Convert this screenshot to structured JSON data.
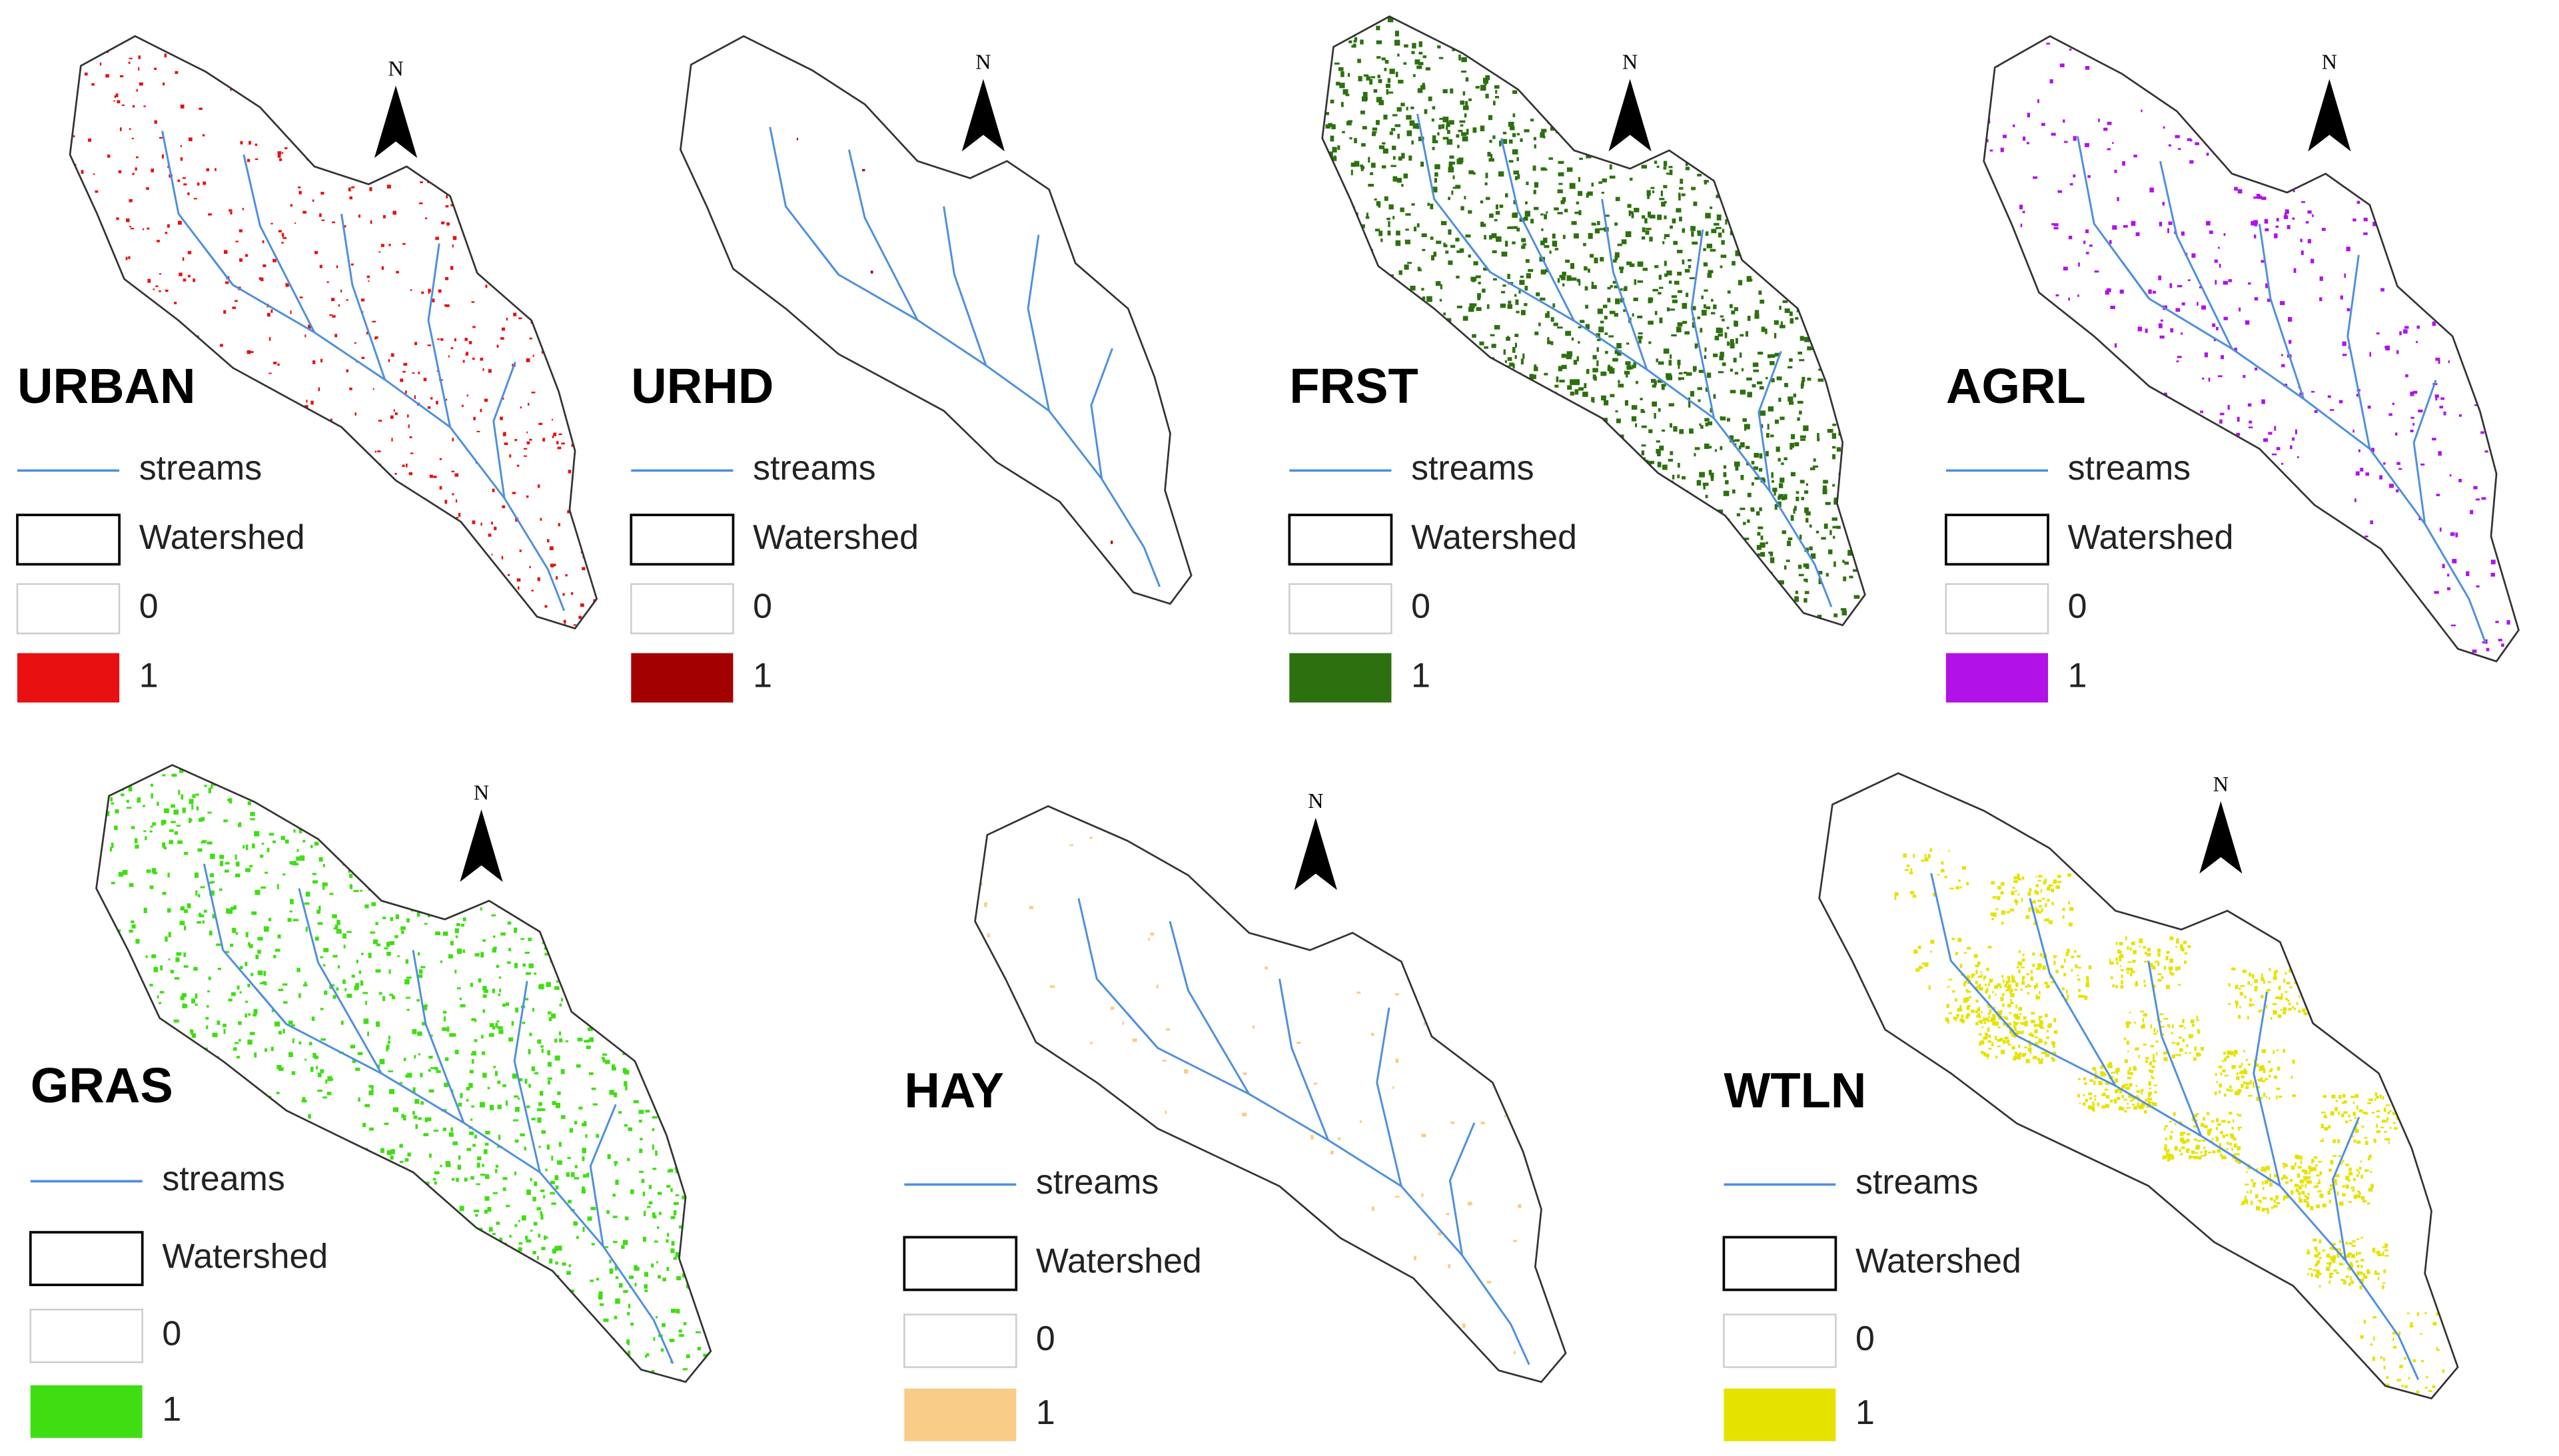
{
  "north": "N",
  "panels": [
    {
      "title": "URBAN",
      "color": "#e81010",
      "legend": [
        "streams",
        "Watershed",
        "0",
        "1"
      ]
    },
    {
      "title": "URHD",
      "color": "#a30000",
      "legend": [
        "streams",
        "Watershed",
        "0",
        "1"
      ]
    },
    {
      "title": "FRST",
      "color": "#2d700f",
      "legend": [
        "streams",
        "Watershed",
        "0",
        "1"
      ]
    },
    {
      "title": "AGRL",
      "color": "#b012e8",
      "legend": [
        "streams",
        "Watershed",
        "0",
        "1"
      ]
    },
    {
      "title": "GRAS",
      "color": "#3fde12",
      "legend": [
        "streams",
        "Watershed",
        "0",
        "1"
      ]
    },
    {
      "title": "HAY",
      "color": "#f9cc88",
      "legend": [
        "streams",
        "Watershed",
        "0",
        "1"
      ]
    },
    {
      "title": "WTLN",
      "color": "#e6e200",
      "legend": [
        "streams",
        "Watershed",
        "0",
        "1"
      ]
    }
  ]
}
